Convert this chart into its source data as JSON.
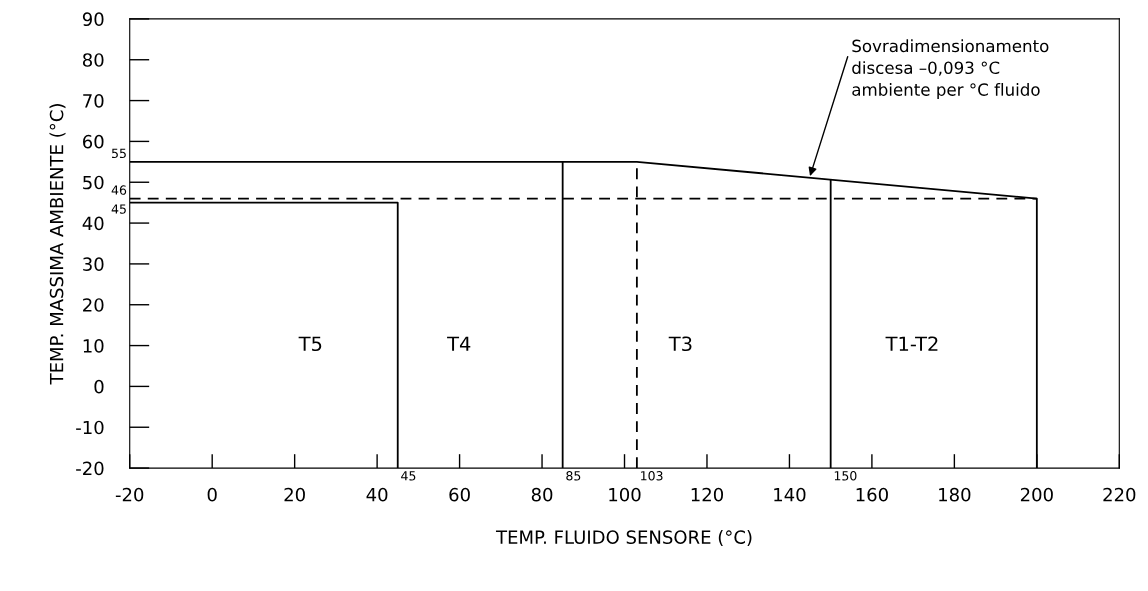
{
  "chart_data": {
    "type": "line",
    "xlabel": "TEMP. FLUIDO SENSORE (°C)",
    "ylabel": "TEMP. MASSIMA AMBIENTE (°C)",
    "xlim": [
      -20,
      220
    ],
    "xticks": [
      -20,
      0,
      20,
      40,
      60,
      80,
      100,
      120,
      140,
      160,
      180,
      200,
      220
    ],
    "ylim": [
      -20,
      90
    ],
    "yticks": [
      -20,
      -10,
      0,
      10,
      20,
      30,
      40,
      50,
      60,
      70,
      80,
      90
    ],
    "grid": false,
    "legend": false,
    "marker": "none",
    "series": [
      {
        "color": "#000000",
        "line_style": "solid",
        "x": [
          -20,
          103,
          200,
          200
        ],
        "values": [
          55,
          55,
          46,
          -20
        ]
      },
      {
        "color": "#000000",
        "line_style": "solid",
        "x": [
          -20,
          45,
          45
        ],
        "values": [
          45,
          45,
          -20
        ]
      },
      {
        "color": "#000000",
        "line_style": "solid",
        "x": [
          85,
          85
        ],
        "values": [
          -20,
          55
        ]
      },
      {
        "color": "#000000",
        "line_style": "solid",
        "x": [
          150,
          150
        ],
        "values": [
          -20,
          50.6
        ]
      },
      {
        "color": "#000000",
        "line_style": "dashed",
        "x": [
          -20,
          200
        ],
        "values": [
          46,
          46
        ]
      },
      {
        "color": "#000000",
        "line_style": "dashed",
        "x": [
          103,
          103
        ],
        "values": [
          -20,
          55
        ]
      }
    ],
    "annotations": [
      "T5",
      "T4",
      "T3",
      "T1-T2",
      {
        "text": "45",
        "x": 45,
        "y": -20
      },
      {
        "text": "85",
        "x": 85,
        "y": -20
      },
      {
        "text": "103",
        "x": 103,
        "y": -20
      },
      {
        "text": "150",
        "x": 150,
        "y": -20
      },
      {
        "text": "55",
        "x": -20,
        "y": 55
      },
      {
        "text": "46",
        "x": -20,
        "y": 46
      },
      {
        "text": "45",
        "x": -20,
        "y": 45
      },
      {
        "text": "Sovradimensionamento\ndiscesa –0,093 °C\nambiente per °C fluido",
        "x": 145,
        "y": 51.5
      }
    ]
  }
}
